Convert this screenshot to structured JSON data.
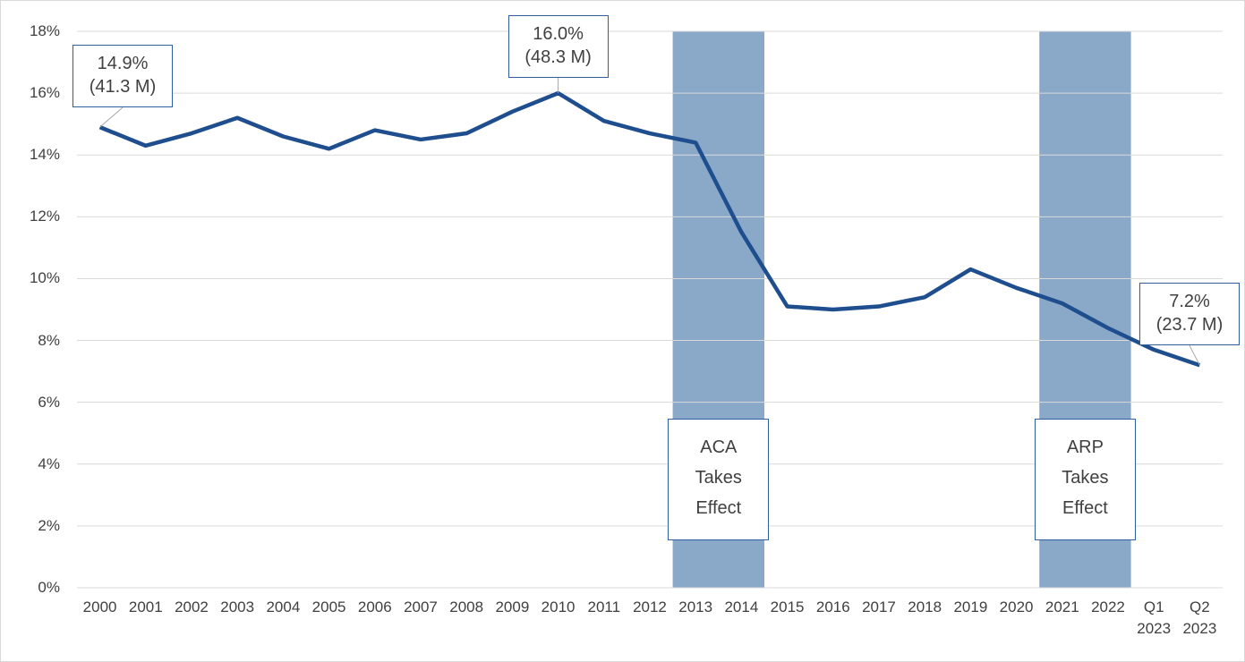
{
  "chart_data": {
    "type": "line",
    "categories": [
      "2000",
      "2001",
      "2002",
      "2003",
      "2004",
      "2005",
      "2006",
      "2007",
      "2008",
      "2009",
      "2010",
      "2011",
      "2012",
      "2013",
      "2014",
      "2015",
      "2016",
      "2017",
      "2018",
      "2019",
      "2020",
      "2021",
      "2022",
      "Q1 2023",
      "Q2 2023"
    ],
    "values": [
      14.9,
      14.3,
      14.7,
      15.2,
      14.6,
      14.2,
      14.8,
      14.5,
      14.7,
      15.4,
      16.0,
      15.1,
      14.7,
      14.4,
      11.5,
      9.1,
      9.0,
      9.1,
      9.4,
      10.3,
      9.7,
      9.2,
      8.4,
      7.7,
      7.2
    ],
    "value_labels": [
      "14.9%",
      null,
      null,
      null,
      null,
      null,
      null,
      null,
      null,
      null,
      "16.0%",
      null,
      null,
      null,
      null,
      null,
      null,
      null,
      null,
      null,
      null,
      null,
      null,
      null,
      "7.2%"
    ],
    "enrollment_labels": [
      "(41.3 M)",
      null,
      null,
      null,
      null,
      null,
      null,
      null,
      null,
      null,
      "(48.3 M)",
      null,
      null,
      null,
      null,
      null,
      null,
      null,
      null,
      null,
      null,
      null,
      null,
      null,
      "(23.7 M)"
    ],
    "color": "#1f4e8f",
    "ylim": [
      0,
      18
    ],
    "yticks": [
      {
        "value": 0,
        "label": "0%"
      },
      {
        "value": 2,
        "label": "2%"
      },
      {
        "value": 4,
        "label": "4%"
      },
      {
        "value": 6,
        "label": "6%"
      },
      {
        "value": 8,
        "label": "8%"
      },
      {
        "value": 10,
        "label": "10%"
      },
      {
        "value": 12,
        "label": "12%"
      },
      {
        "value": 14,
        "label": "14%"
      },
      {
        "value": 16,
        "label": "16%"
      },
      {
        "value": 18,
        "label": "18%"
      }
    ],
    "grid": true,
    "shaded_periods": [
      {
        "label": "ACA Takes Effect",
        "start": "2013",
        "end": "2014",
        "color": "#8aa9c9"
      },
      {
        "label": "ARP Takes Effect",
        "start": "2021",
        "end": "2022",
        "color": "#8aa9c9"
      }
    ]
  }
}
